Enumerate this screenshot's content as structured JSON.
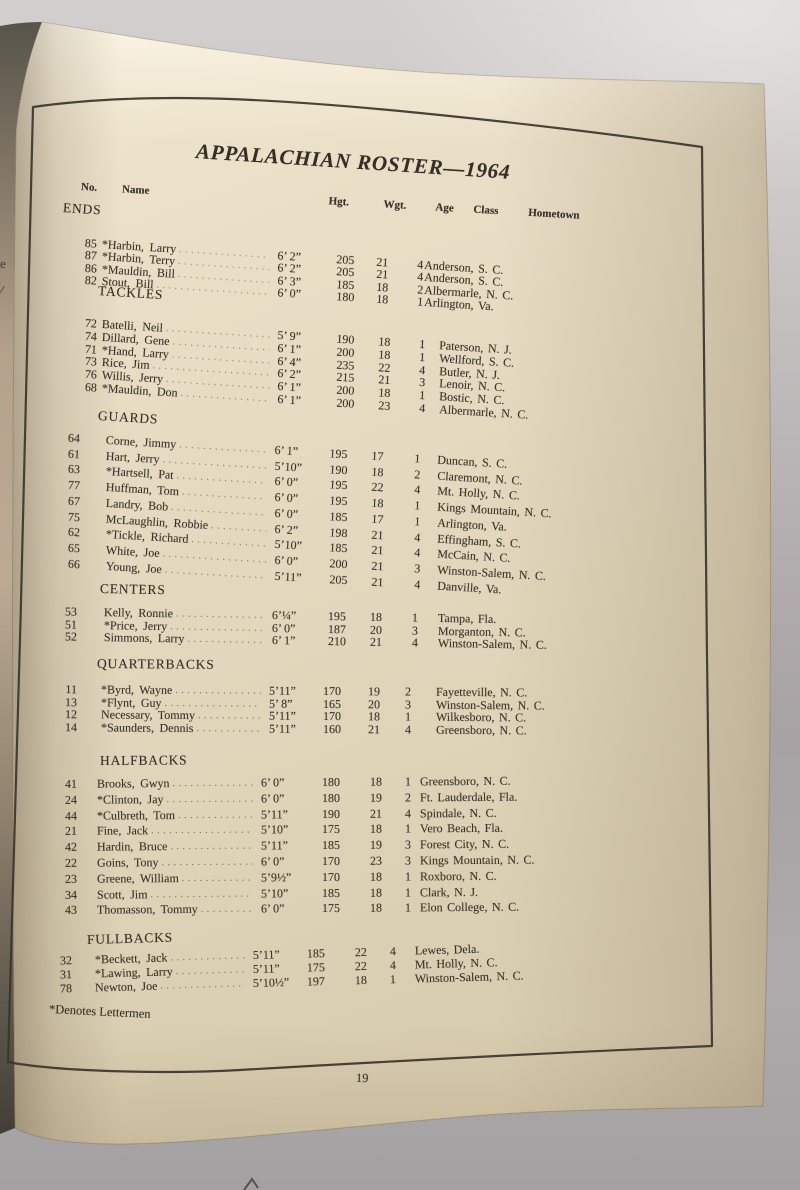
{
  "page": {
    "title": "APPALACHIAN ROSTER—1964",
    "page_number": "19",
    "footnote": "*Denotes Lettermen"
  },
  "left_edge_fragments": [
    "e",
    "/"
  ],
  "colors": {
    "paper": "#e9dec6",
    "ink": "#3a332b",
    "frame_border": "#3b342b",
    "background_wall": "#c6c3c2"
  },
  "table": {
    "headers": {
      "no": "No.",
      "name": "Name",
      "hgt": "Hgt.",
      "wgt": "Wgt.",
      "age": "Age",
      "class": "Class",
      "hometown": "Hometown"
    },
    "sections": [
      {
        "label": "ENDS",
        "players": [
          {
            "no": "85",
            "name": "*Harbin,  Larry",
            "hgt": "6’ 2”",
            "wgt": "205",
            "age": "21",
            "class": "4",
            "hometown": "Anderson, S. C."
          },
          {
            "no": "87",
            "name": "*Harbin,  Terry",
            "hgt": "6’ 2”",
            "wgt": "205",
            "age": "21",
            "class": "4",
            "hometown": "Anderson, S. C."
          },
          {
            "no": "86",
            "name": "*Mauldin,  Bill",
            "hgt": "6’ 3”",
            "wgt": "185",
            "age": "18",
            "class": "2",
            "hometown": "Albermarle, N. C."
          },
          {
            "no": "82",
            "name": "Stout,  Bill",
            "hgt": "6’ 0”",
            "wgt": "180",
            "age": "18",
            "class": "1",
            "hometown": "Arlington, Va."
          }
        ]
      },
      {
        "label": "TACKLES",
        "players": [
          {
            "no": "72",
            "name": "Batelli,  Neil",
            "hgt": "5’ 9”",
            "wgt": "190",
            "age": "18",
            "class": "1",
            "hometown": "Paterson, N. J."
          },
          {
            "no": "74",
            "name": "Dillard,  Gene",
            "hgt": "6’ 1”",
            "wgt": "200",
            "age": "18",
            "class": "1",
            "hometown": "Wellford, S. C."
          },
          {
            "no": "71",
            "name": "*Hand,  Larry",
            "hgt": "6’ 4”",
            "wgt": "235",
            "age": "22",
            "class": "4",
            "hometown": "Butler, N. J."
          },
          {
            "no": "73",
            "name": "Rice,  Jim",
            "hgt": "6’ 2”",
            "wgt": "215",
            "age": "21",
            "class": "3",
            "hometown": "Lenoir, N. C."
          },
          {
            "no": "76",
            "name": "Willis,  Jerry",
            "hgt": "6’ 1”",
            "wgt": "200",
            "age": "18",
            "class": "1",
            "hometown": "Bostic, N. C."
          },
          {
            "no": "68",
            "name": "*Mauldin,  Don",
            "hgt": "6’ 1”",
            "wgt": "200",
            "age": "23",
            "class": "4",
            "hometown": "Albermarle, N. C."
          }
        ]
      },
      {
        "label": "GUARDS",
        "players": [
          {
            "no": "64",
            "name": "Corne,  Jimmy",
            "hgt": "6’ 1”",
            "wgt": "195",
            "age": "17",
            "class": "1",
            "hometown": "Duncan, S. C."
          },
          {
            "no": "61",
            "name": "Hart,  Jerry",
            "hgt": "5’10”",
            "wgt": "190",
            "age": "18",
            "class": "2",
            "hometown": "Claremont, N. C."
          },
          {
            "no": "63",
            "name": "*Hartsell,  Pat",
            "hgt": "6’ 0”",
            "wgt": "195",
            "age": "22",
            "class": "4",
            "hometown": "Mt. Holly, N. C."
          },
          {
            "no": "77",
            "name": "Huffman,  Tom",
            "hgt": "6’ 0”",
            "wgt": "195",
            "age": "18",
            "class": "1",
            "hometown": "Kings Mountain, N. C."
          },
          {
            "no": "67",
            "name": "Landry,  Bob",
            "hgt": "6’ 0”",
            "wgt": "185",
            "age": "17",
            "class": "1",
            "hometown": "Arlington, Va."
          },
          {
            "no": "75",
            "name": "McLaughlin,  Robbie",
            "hgt": "6’ 2”",
            "wgt": "198",
            "age": "21",
            "class": "4",
            "hometown": "Effingham, S. C."
          },
          {
            "no": "62",
            "name": "*Tickle,  Richard",
            "hgt": "5’10”",
            "wgt": "185",
            "age": "21",
            "class": "4",
            "hometown": "McCain, N. C."
          },
          {
            "no": "65",
            "name": "White,  Joe",
            "hgt": "6’ 0”",
            "wgt": "200",
            "age": "21",
            "class": "3",
            "hometown": "Winston-Salem, N. C."
          },
          {
            "no": "66",
            "name": "Young,  Joe",
            "hgt": "5’11”",
            "wgt": "205",
            "age": "21",
            "class": "4",
            "hometown": "Danville, Va."
          }
        ]
      },
      {
        "label": "CENTERS",
        "players": [
          {
            "no": "53",
            "name": "Kelly,  Ronnie",
            "hgt": "6’¼”",
            "wgt": "195",
            "age": "18",
            "class": "1",
            "hometown": "Tampa, Fla."
          },
          {
            "no": "51",
            "name": "*Price,  Jerry",
            "hgt": "6’ 0”",
            "wgt": "187",
            "age": "20",
            "class": "3",
            "hometown": "Morganton, N. C."
          },
          {
            "no": "52",
            "name": "Simmons,  Larry",
            "hgt": "6’ 1”",
            "wgt": "210",
            "age": "21",
            "class": "4",
            "hometown": "Winston-Salem, N. C."
          }
        ]
      },
      {
        "label": "QUARTERBACKS",
        "players": [
          {
            "no": "11",
            "name": "*Byrd,  Wayne",
            "hgt": "5’11”",
            "wgt": "170",
            "age": "19",
            "class": "2",
            "hometown": "Fayetteville, N. C."
          },
          {
            "no": "13",
            "name": "*Flynt,  Guy",
            "hgt": "5’ 8”",
            "wgt": "165",
            "age": "20",
            "class": "3",
            "hometown": "Winston-Salem, N. C."
          },
          {
            "no": "12",
            "name": "Necessary,  Tommy",
            "hgt": "5’11”",
            "wgt": "170",
            "age": "18",
            "class": "1",
            "hometown": "Wilkesboro, N. C."
          },
          {
            "no": "14",
            "name": "*Saunders,  Dennis",
            "hgt": "5’11”",
            "wgt": "160",
            "age": "21",
            "class": "4",
            "hometown": "Greensboro, N. C."
          }
        ]
      },
      {
        "label": "HALFBACKS",
        "players": [
          {
            "no": "41",
            "name": "Brooks,  Gwyn",
            "hgt": "6’ 0”",
            "wgt": "180",
            "age": "18",
            "class": "1",
            "hometown": "Greensboro, N. C."
          },
          {
            "no": "24",
            "name": "*Clinton,  Jay",
            "hgt": "6’ 0”",
            "wgt": "180",
            "age": "19",
            "class": "2",
            "hometown": "Ft. Lauderdale, Fla."
          },
          {
            "no": "44",
            "name": "*Culbreth,  Tom",
            "hgt": "5’11”",
            "wgt": "190",
            "age": "21",
            "class": "4",
            "hometown": "Spindale, N. C."
          },
          {
            "no": "21",
            "name": "Fine,  Jack",
            "hgt": "5’10”",
            "wgt": "175",
            "age": "18",
            "class": "1",
            "hometown": "Vero Beach, Fla."
          },
          {
            "no": "42",
            "name": "Hardin,  Bruce",
            "hgt": "5’11”",
            "wgt": "185",
            "age": "19",
            "class": "3",
            "hometown": "Forest City, N. C."
          },
          {
            "no": "22",
            "name": "Goins,  Tony",
            "hgt": "6’ 0”",
            "wgt": "170",
            "age": "23",
            "class": "3",
            "hometown": "Kings Mountain, N. C."
          },
          {
            "no": "23",
            "name": "Greene,  William",
            "hgt": "5’9½”",
            "wgt": "170",
            "age": "18",
            "class": "1",
            "hometown": "Roxboro, N. C."
          },
          {
            "no": "34",
            "name": "Scott,  Jim",
            "hgt": "5’10”",
            "wgt": "185",
            "age": "18",
            "class": "1",
            "hometown": "Clark, N. J."
          },
          {
            "no": "43",
            "name": "Thomasson,  Tommy",
            "hgt": "6’ 0”",
            "wgt": "175",
            "age": "18",
            "class": "1",
            "hometown": "Elon College, N. C."
          }
        ]
      },
      {
        "label": "FULLBACKS",
        "players": [
          {
            "no": "32",
            "name": "*Beckett,  Jack",
            "hgt": "5’11”",
            "wgt": "185",
            "age": "22",
            "class": "4",
            "hometown": "Lewes, Dela."
          },
          {
            "no": "31",
            "name": "*Lawing,  Larry",
            "hgt": "5’11”",
            "wgt": "175",
            "age": "22",
            "class": "4",
            "hometown": "Mt. Holly, N. C."
          },
          {
            "no": "78",
            "name": "Newton,  Joe",
            "hgt": "5’10½”",
            "wgt": "197",
            "age": "18",
            "class": "1",
            "hometown": "Winston-Salem, N. C."
          }
        ]
      }
    ]
  }
}
